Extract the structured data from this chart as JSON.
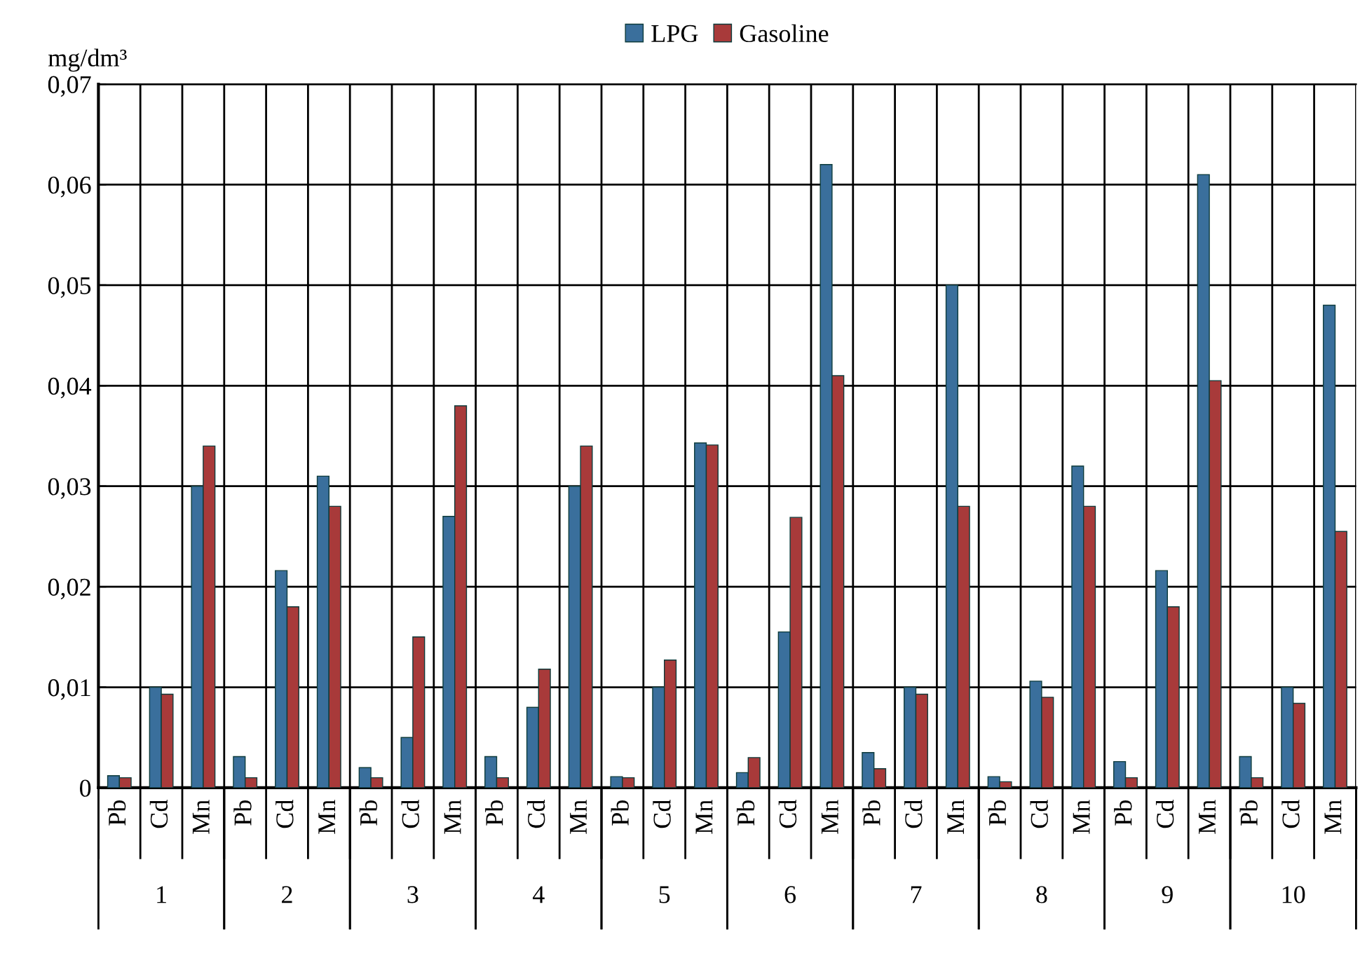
{
  "chart_data": {
    "type": "bar",
    "ylabel": "mg/dm³",
    "legend": "top",
    "categories": [
      "Pb",
      "Cd",
      "Mn",
      "Pb",
      "Cd",
      "Mn",
      "Pb",
      "Cd",
      "Mn",
      "Pb",
      "Cd",
      "Mn",
      "Pb",
      "Cd",
      "Mn",
      "Pb",
      "Cd",
      "Mn",
      "Pb",
      "Cd",
      "Mn",
      "Pb",
      "Cd",
      "Mn",
      "Pb",
      "Cd",
      "Mn",
      "Pb",
      "Cd",
      "Mn"
    ],
    "annotations": [
      "1",
      "2",
      "3",
      "4",
      "5",
      "6",
      "7",
      "8",
      "9",
      "10"
    ],
    "series": [
      {
        "name": "LPG",
        "color": "#3a6f9c",
        "values": [
          0.0012,
          0.01,
          0.03,
          0.0031,
          0.0216,
          0.031,
          0.002,
          0.005,
          0.027,
          0.0031,
          0.008,
          0.03,
          0.0011,
          0.01,
          0.0343,
          0.0015,
          0.0155,
          0.062,
          0.0035,
          0.01,
          0.05,
          0.0011,
          0.0106,
          0.032,
          0.0026,
          0.0216,
          0.061,
          0.0031,
          0.01,
          0.048
        ]
      },
      {
        "name": "Gasoline",
        "color": "#a83a3a",
        "values": [
          0.001,
          0.0093,
          0.034,
          0.001,
          0.018,
          0.028,
          0.001,
          0.015,
          0.038,
          0.001,
          0.0118,
          0.034,
          0.001,
          0.0127,
          0.0341,
          0.003,
          0.0269,
          0.041,
          0.0019,
          0.0093,
          0.028,
          0.0006,
          0.009,
          0.028,
          0.001,
          0.018,
          0.0405,
          0.001,
          0.0084,
          0.0255
        ]
      }
    ],
    "ylim": [
      0,
      0.07
    ],
    "yticks": [
      0,
      {
        "value": 0.01,
        "label": "0,01"
      },
      {
        "value": 0.02,
        "label": "0,02"
      },
      {
        "value": 0.03,
        "label": "0,03"
      },
      {
        "value": 0.04,
        "label": "0,04"
      },
      {
        "value": 0.05,
        "label": "0,05"
      },
      {
        "value": 0.06,
        "label": "0,06"
      },
      {
        "value": 0.07,
        "label": "0,07"
      }
    ],
    "grid": "y"
  }
}
